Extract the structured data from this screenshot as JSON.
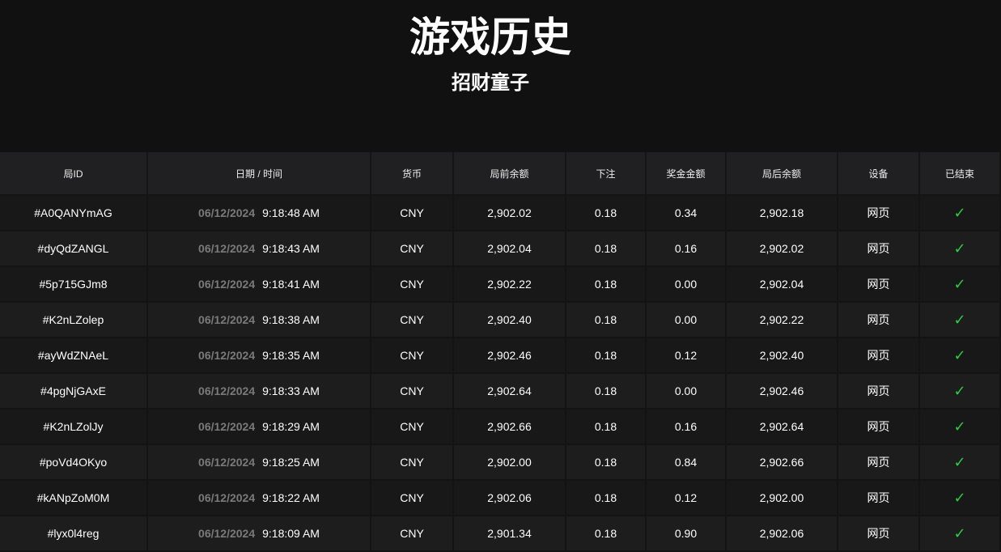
{
  "header": {
    "title": "游戏历史",
    "subtitle": "招财童子"
  },
  "table": {
    "columns": [
      "局ID",
      "日期 / 时间",
      "货币",
      "局前余额",
      "下注",
      "奖金金额",
      "局后余额",
      "设备",
      "已结束"
    ],
    "rows": [
      {
        "id": "#A0QANYmAG",
        "date": "06/12/2024",
        "time": "9:18:48 AM",
        "currency": "CNY",
        "before": "2,902.02",
        "bet": "0.18",
        "win": "0.34",
        "after": "2,902.18",
        "device": "网页"
      },
      {
        "id": "#dyQdZANGL",
        "date": "06/12/2024",
        "time": "9:18:43 AM",
        "currency": "CNY",
        "before": "2,902.04",
        "bet": "0.18",
        "win": "0.16",
        "after": "2,902.02",
        "device": "网页"
      },
      {
        "id": "#5p715GJm8",
        "date": "06/12/2024",
        "time": "9:18:41 AM",
        "currency": "CNY",
        "before": "2,902.22",
        "bet": "0.18",
        "win": "0.00",
        "after": "2,902.04",
        "device": "网页"
      },
      {
        "id": "#K2nLZolep",
        "date": "06/12/2024",
        "time": "9:18:38 AM",
        "currency": "CNY",
        "before": "2,902.40",
        "bet": "0.18",
        "win": "0.00",
        "after": "2,902.22",
        "device": "网页"
      },
      {
        "id": "#ayWdZNAeL",
        "date": "06/12/2024",
        "time": "9:18:35 AM",
        "currency": "CNY",
        "before": "2,902.46",
        "bet": "0.18",
        "win": "0.12",
        "after": "2,902.40",
        "device": "网页"
      },
      {
        "id": "#4pgNjGAxE",
        "date": "06/12/2024",
        "time": "9:18:33 AM",
        "currency": "CNY",
        "before": "2,902.64",
        "bet": "0.18",
        "win": "0.00",
        "after": "2,902.46",
        "device": "网页"
      },
      {
        "id": "#K2nLZolJy",
        "date": "06/12/2024",
        "time": "9:18:29 AM",
        "currency": "CNY",
        "before": "2,902.66",
        "bet": "0.18",
        "win": "0.16",
        "after": "2,902.64",
        "device": "网页"
      },
      {
        "id": "#poVd4OKyo",
        "date": "06/12/2024",
        "time": "9:18:25 AM",
        "currency": "CNY",
        "before": "2,902.00",
        "bet": "0.18",
        "win": "0.84",
        "after": "2,902.66",
        "device": "网页"
      },
      {
        "id": "#kANpZoM0M",
        "date": "06/12/2024",
        "time": "9:18:22 AM",
        "currency": "CNY",
        "before": "2,902.06",
        "bet": "0.18",
        "win": "0.12",
        "after": "2,902.00",
        "device": "网页"
      },
      {
        "id": "#lyx0l4reg",
        "date": "06/12/2024",
        "time": "9:18:09 AM",
        "currency": "CNY",
        "before": "2,901.34",
        "bet": "0.18",
        "win": "0.90",
        "after": "2,902.06",
        "device": "网页"
      }
    ],
    "finished_icon": "check-icon",
    "check_color": "#2ecc40"
  }
}
